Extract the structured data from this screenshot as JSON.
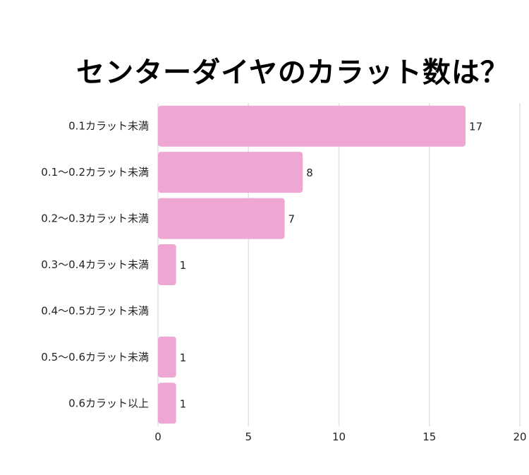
{
  "chart_data": {
    "type": "bar",
    "orientation": "horizontal",
    "title": "センターダイヤのカラット数は？",
    "categories": [
      "0.1カラット未満",
      "0.1〜0.2カラット未満",
      "0.2〜0.3カラット未満",
      "0.3〜0.4カラット未満",
      "0.4〜0.5カラット未満",
      "0.5〜0.6カラット未満",
      "0.6カラット以上"
    ],
    "values": [
      17,
      8,
      7,
      1,
      0,
      1,
      1
    ],
    "data_labels": [
      "17",
      "8",
      "7",
      "1",
      "",
      "1",
      "1"
    ],
    "xlim": [
      0,
      20
    ],
    "xticks": [
      "0",
      "5",
      "10",
      "15",
      "20"
    ],
    "xlabel": "",
    "ylabel": "",
    "grid": true,
    "bar_color": "#eda7d2",
    "grid_color": "#e2e2e2"
  }
}
